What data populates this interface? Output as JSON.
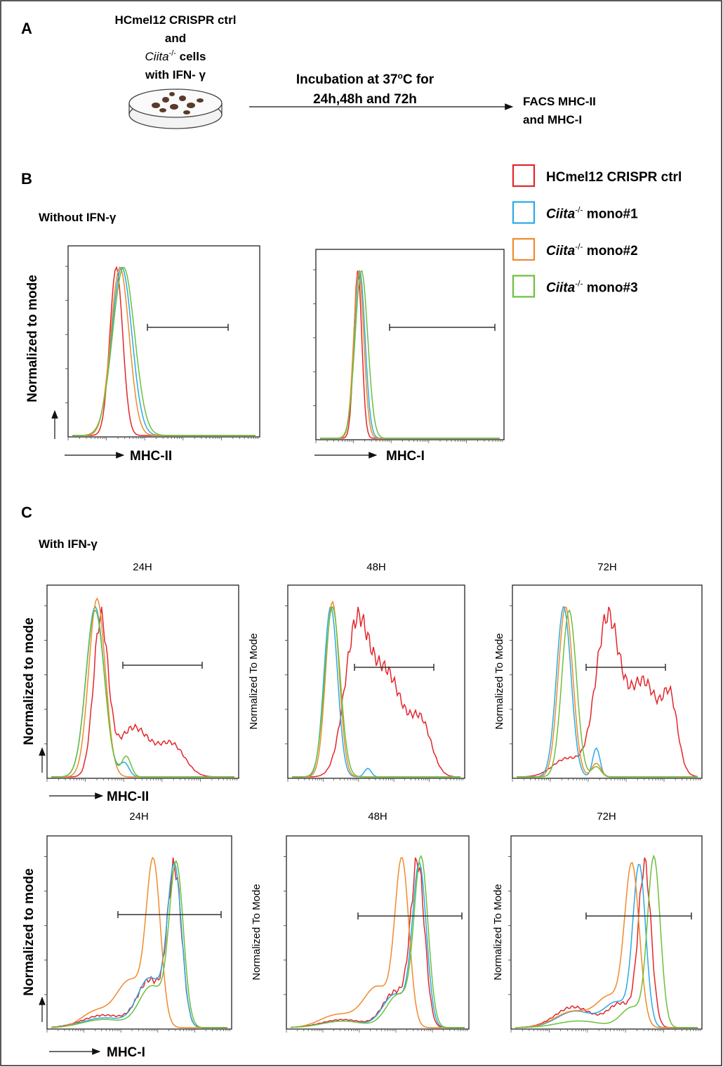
{
  "panel_a": {
    "label": "A",
    "sample_line1": "HCmel12 CRISPR ctrl",
    "sample_line2": "and",
    "sample_gene": "Ciita",
    "sample_sup": "-/-",
    "sample_cells": " cells",
    "sample_line4": "with IFN- γ",
    "step_line1": "Incubation at 37",
    "step_sup": "o",
    "step_line1_end": "C for",
    "step_line2": "24h,48h and 72h",
    "readout_line1": "FACS MHC-II",
    "readout_line2": "and MHC-I"
  },
  "legend": [
    {
      "name": "HCmel12 CRISPR ctrl",
      "color": "#e3262b"
    },
    {
      "gene": "Ciita",
      "sup": "-/-",
      "name": " mono#1",
      "color": "#2aaae2"
    },
    {
      "gene": "Ciita",
      "sup": "-/-",
      "name": " mono#2",
      "color": "#f08a2c"
    },
    {
      "gene": "Ciita",
      "sup": "-/-",
      "name": " mono#3",
      "color": "#6cbf3c"
    }
  ],
  "panel_b": {
    "label": "B",
    "condition": "Without IFN-γ",
    "y_label": "Normalized to mode",
    "x_labels": [
      "MHC-II",
      "MHC-I"
    ]
  },
  "panel_c": {
    "label": "C",
    "condition": "With IFN-γ",
    "times": [
      "24H",
      "48H",
      "72H"
    ],
    "y_label_bold": "Normalized to mode",
    "y_label_plain": "Normalized To Mode",
    "x_labels": [
      "MHC-II",
      "MHC-I"
    ]
  }
}
